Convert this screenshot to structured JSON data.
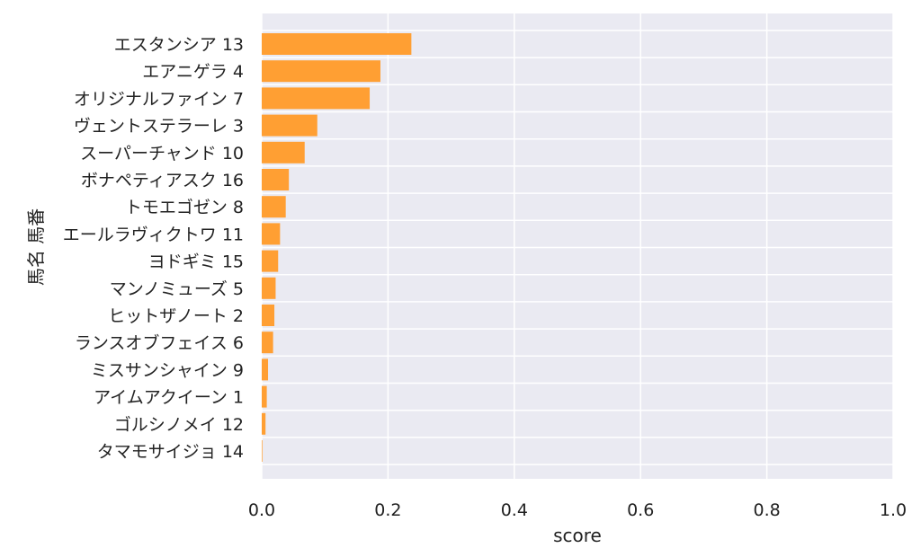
{
  "chart_data": {
    "type": "bar",
    "orientation": "horizontal",
    "xlabel": "score",
    "ylabel": "馬名 馬番",
    "xlim": [
      0,
      1.0
    ],
    "xticks": [
      "0.0",
      "0.2",
      "0.4",
      "0.6",
      "0.8",
      "1.0"
    ],
    "grid": true,
    "bar_color": "#ff9f33",
    "background_color": "#eaeaf2",
    "categories": [
      "エスタンシア 13",
      "エアニゲラ 4",
      "オリジナルファイン 7",
      "ヴェントステラーレ 3",
      "スーパーチャンド 10",
      "ボナペティアスク 16",
      "トモエゴゼン 8",
      "エールラヴィクトワ 11",
      "ヨドギミ 15",
      "マンノミューズ 5",
      "ヒットザノート 2",
      "ランスオブフェイス 6",
      "ミスサンシャイン 9",
      "アイムアクイーン 1",
      "ゴルシノメイ 12",
      "タマモサイジョ 14"
    ],
    "values": [
      0.237,
      0.188,
      0.171,
      0.088,
      0.068,
      0.043,
      0.038,
      0.029,
      0.026,
      0.022,
      0.02,
      0.018,
      0.01,
      0.008,
      0.006,
      0.001
    ]
  }
}
